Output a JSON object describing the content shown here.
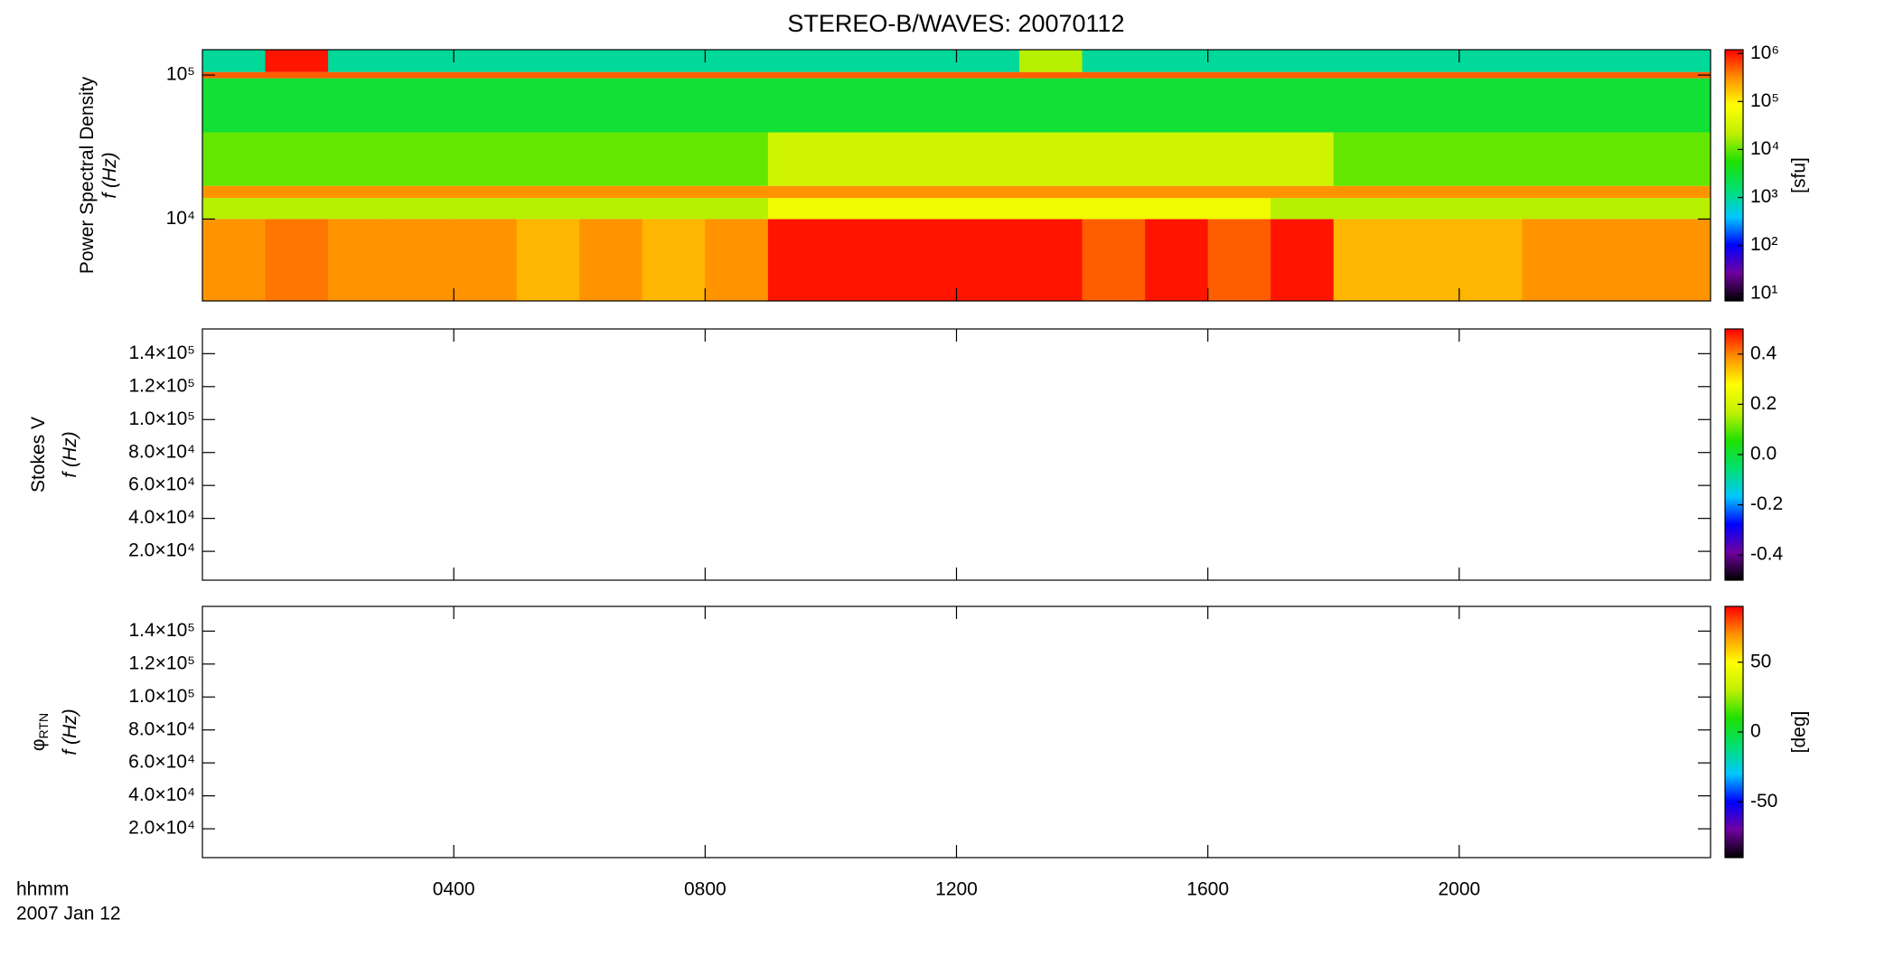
{
  "chart_data": [
    {
      "type": "heatmap",
      "title": "STEREO-B/WAVES: 20070112",
      "ylabel": [
        "Power Spectral Density",
        "f (Hz)"
      ],
      "x_bins": [
        0,
        1,
        2,
        3,
        4,
        5,
        6,
        7,
        8,
        9,
        10,
        11,
        12,
        13,
        14,
        15,
        16,
        17,
        18,
        19,
        20,
        21,
        22,
        23,
        24
      ],
      "y_bins": [
        2700,
        10000,
        14000,
        17000,
        40000,
        95000,
        105000,
        150000
      ],
      "z": [
        [
          300000,
          400000,
          300000,
          300000,
          300000,
          200000,
          300000,
          200000,
          300000,
          1000000,
          1000000,
          1000000,
          1000000,
          1000000,
          500000,
          1000000,
          500000,
          1000000,
          200000,
          200000,
          200000,
          300000,
          300000,
          300000
        ],
        [
          20000,
          20000,
          20000,
          20000,
          20000,
          20000,
          20000,
          20000,
          20000,
          60000,
          60000,
          60000,
          60000,
          60000,
          60000,
          60000,
          60000,
          20000,
          20000,
          20000,
          20000,
          20000,
          20000,
          20000
        ],
        [
          300000,
          300000,
          300000,
          300000,
          300000,
          300000,
          300000,
          300000,
          300000,
          300000,
          300000,
          300000,
          300000,
          300000,
          300000,
          300000,
          300000,
          300000,
          300000,
          300000,
          300000,
          300000,
          300000,
          300000
        ],
        [
          10000,
          10000,
          10000,
          10000,
          10000,
          10000,
          10000,
          10000,
          10000,
          30000,
          30000,
          30000,
          30000,
          30000,
          30000,
          30000,
          30000,
          30000,
          10000,
          10000,
          10000,
          10000,
          10000,
          10000
        ],
        [
          3000,
          3000,
          3000,
          3000,
          3000,
          3000,
          3000,
          3000,
          3000,
          3000,
          3000,
          3000,
          3000,
          3000,
          3000,
          3000,
          3000,
          3000,
          3000,
          3000,
          3000,
          3000,
          3000,
          3000
        ],
        [
          500000,
          500000,
          500000,
          500000,
          500000,
          500000,
          500000,
          500000,
          500000,
          500000,
          500000,
          500000,
          500000,
          500000,
          500000,
          500000,
          500000,
          500000,
          500000,
          500000,
          500000,
          500000,
          500000,
          500000
        ],
        [
          1000,
          1000000,
          1000,
          1000,
          1000,
          1000,
          1000,
          1000,
          1000,
          1000,
          1000,
          1000,
          1000,
          20000,
          1000,
          1000,
          1000,
          1000,
          1000,
          1000,
          1000,
          1000,
          1000,
          1000
        ]
      ],
      "xlim": [
        0,
        24
      ],
      "ylim": [
        2700,
        150000
      ],
      "ylog": true,
      "yticks": [
        {
          "value": 10000,
          "label": "10⁴"
        },
        {
          "value": 100000,
          "label": "10⁵"
        }
      ],
      "clim": [
        7,
        1200000
      ],
      "clog": true,
      "cticks": [
        {
          "value": 10,
          "label": "10¹"
        },
        {
          "value": 100,
          "label": "10²"
        },
        {
          "value": 1000,
          "label": "10³"
        },
        {
          "value": 10000,
          "label": "10⁴"
        },
        {
          "value": 100000,
          "label": "10⁵"
        },
        {
          "value": 1000000,
          "label": "10⁶"
        }
      ],
      "clabel": "[sfu]",
      "colormap": [
        "#000000",
        "#7000a0",
        "#0000ff",
        "#00c8ff",
        "#00e070",
        "#20e000",
        "#c0f000",
        "#ffff00",
        "#ff9000",
        "#ff0000"
      ]
    },
    {
      "type": "heatmap",
      "ylabel": [
        "Stokes V",
        "f (Hz)"
      ],
      "xlim": [
        0,
        24
      ],
      "ylim": [
        2500,
        155000
      ],
      "yticks": [
        {
          "value": 20000,
          "label": "2.0×10⁴"
        },
        {
          "value": 40000,
          "label": "4.0×10⁴"
        },
        {
          "value": 60000,
          "label": "6.0×10⁴"
        },
        {
          "value": 80000,
          "label": "8.0×10⁴"
        },
        {
          "value": 100000,
          "label": "1.0×10⁵"
        },
        {
          "value": 120000,
          "label": "1.2×10⁵"
        },
        {
          "value": 140000,
          "label": "1.4×10⁵"
        }
      ],
      "clim": [
        -0.5,
        0.5
      ],
      "cticks": [
        -0.4,
        -0.2,
        {
          "value": 0,
          "label": "0.0"
        },
        0.2,
        0.4
      ]
    },
    {
      "type": "heatmap",
      "ylabel": [
        "φ",
        "f (Hz)"
      ],
      "ylabel_subscript": "RTN",
      "xlim": [
        0,
        24
      ],
      "ylim": [
        2500,
        155000
      ],
      "yticks": [
        {
          "value": 20000,
          "label": "2.0×10⁴"
        },
        {
          "value": 40000,
          "label": "4.0×10⁴"
        },
        {
          "value": 60000,
          "label": "6.0×10⁴"
        },
        {
          "value": 80000,
          "label": "8.0×10⁴"
        },
        {
          "value": 100000,
          "label": "1.0×10⁵"
        },
        {
          "value": 120000,
          "label": "1.2×10⁵"
        },
        {
          "value": 140000,
          "label": "1.4×10⁵"
        }
      ],
      "clim": [
        -90,
        90
      ],
      "cticks": [
        -50,
        0,
        50
      ],
      "clabel": "[deg]",
      "xticks": [
        {
          "value": 4,
          "label": "0400"
        },
        {
          "value": 8,
          "label": "0800"
        },
        {
          "value": 12,
          "label": "1200"
        },
        {
          "value": 16,
          "label": "1600"
        },
        {
          "value": 20,
          "label": "2000"
        }
      ],
      "xlabel": "hhmm",
      "date": "2007 Jan 12"
    }
  ]
}
